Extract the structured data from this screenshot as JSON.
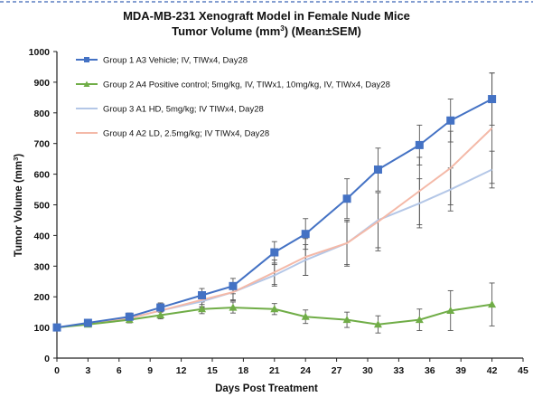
{
  "chart_data": {
    "type": "line",
    "title": "MDA-MB-231 Xenograft Model in Female Nude Mice",
    "subtitle_prefix": "Tumor Volume (mm",
    "subtitle_sup": "3",
    "subtitle_suffix": ")  (Mean±SEM)",
    "xlabel": "Days Post Treatment",
    "ylabel_prefix": "Tumor Volume (mm",
    "ylabel_sup": "3",
    "ylabel_suffix": ")",
    "xlim": [
      0,
      45
    ],
    "ylim": [
      0,
      1000
    ],
    "xticks": [
      0,
      3,
      6,
      9,
      12,
      15,
      18,
      21,
      24,
      27,
      30,
      33,
      36,
      39,
      42,
      45
    ],
    "yticks": [
      0,
      100,
      200,
      300,
      400,
      500,
      600,
      700,
      800,
      900,
      1000
    ],
    "grid": false,
    "legend_position": "top-left",
    "series": [
      {
        "name": "Group 1 A3 Vehicle; IV, TIWx4, Day28",
        "color": "#4472c4",
        "marker": "square",
        "x": [
          0,
          3,
          7,
          10,
          14,
          17,
          21,
          24,
          28,
          31,
          35,
          38,
          42
        ],
        "y": [
          100,
          115,
          135,
          165,
          205,
          235,
          345,
          405,
          520,
          615,
          695,
          775,
          845
        ],
        "err": [
          8,
          10,
          12,
          15,
          22,
          25,
          35,
          50,
          65,
          70,
          65,
          70,
          85
        ]
      },
      {
        "name": "Group 2 A4 Positive control; 5mg/kg, IV, TIWx1, 10mg/kg, IV, TIWx4, Day28",
        "color": "#70ad47",
        "marker": "triangle",
        "x": [
          0,
          3,
          7,
          10,
          14,
          17,
          21,
          24,
          28,
          31,
          35,
          38,
          42
        ],
        "y": [
          100,
          110,
          125,
          140,
          160,
          165,
          160,
          135,
          125,
          110,
          125,
          155,
          175
        ],
        "err": [
          8,
          8,
          10,
          12,
          15,
          18,
          18,
          22,
          25,
          28,
          35,
          65,
          70
        ]
      },
      {
        "name": "Group 3 A1 HD, 5mg/kg; IV TIWx4, Day28",
        "color": "#b4c7e7",
        "marker": "line",
        "x": [
          0,
          3,
          7,
          10,
          14,
          17,
          21,
          24,
          28,
          31,
          35,
          38,
          42
        ],
        "y": [
          100,
          112,
          130,
          155,
          185,
          215,
          270,
          320,
          375,
          450,
          505,
          550,
          615
        ],
        "err": [
          8,
          10,
          12,
          15,
          20,
          25,
          35,
          50,
          70,
          90,
          80,
          70,
          60
        ]
      },
      {
        "name": "Group 4 A2 LD, 2.5mg/kg; IV TIWx4, Day28",
        "color": "#f4b9a8",
        "marker": "line",
        "x": [
          0,
          3,
          7,
          10,
          14,
          17,
          21,
          24,
          28,
          31,
          35,
          38,
          42
        ],
        "y": [
          100,
          112,
          130,
          155,
          190,
          215,
          280,
          330,
          375,
          445,
          545,
          620,
          750
        ],
        "err": [
          8,
          10,
          12,
          15,
          22,
          28,
          40,
          60,
          75,
          95,
          110,
          120,
          180
        ]
      }
    ]
  }
}
